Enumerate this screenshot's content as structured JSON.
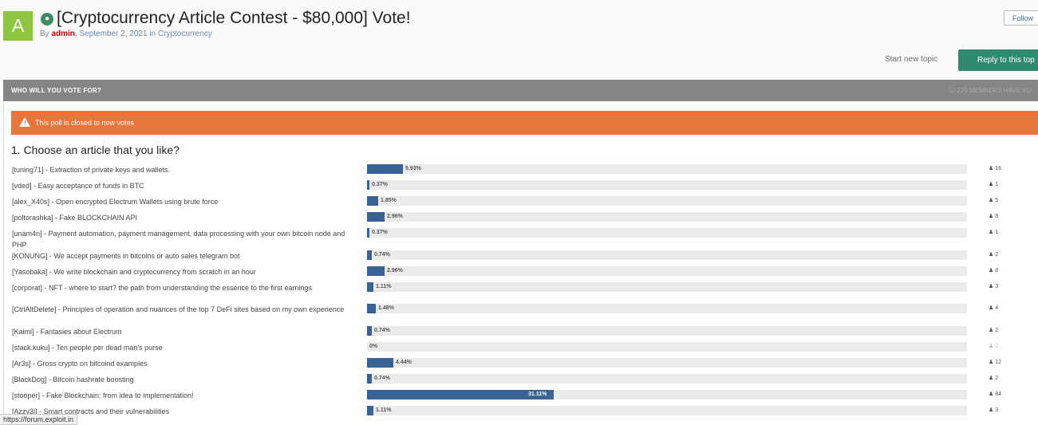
{
  "topic": {
    "avatar_letter": "A",
    "title": "[Cryptocurrency Article Contest - $80,000] Vote!",
    "by_label": "By",
    "author": "admin",
    "date": "September 2, 2021",
    "in_label": "in",
    "forum": "Cryptocurrency"
  },
  "actions": {
    "follow": "Follow",
    "start_new_topic": "Start new topic",
    "reply": "Reply to this top"
  },
  "poll": {
    "header": "WHO WILL YOU VOTE FOR?",
    "members_voted": "☑ 270 MEMBERS HAVE VO",
    "closed_notice": "This poll is closed to new votes",
    "question": "1. Choose an article that you like?",
    "choices": [
      {
        "label": "[tuning71] - Extraction of private keys and wallets.",
        "percent": 5.93,
        "percent_label": "5.93%",
        "votes": "16"
      },
      {
        "label": "[vded] - Easy acceptance of funds in BTC",
        "percent": 0.37,
        "percent_label": "0.37%",
        "votes": "1"
      },
      {
        "label": "[alex_X40s] - Open encrypted Electrum Wallets using brute force",
        "percent": 1.85,
        "percent_label": "1.85%",
        "votes": "5"
      },
      {
        "label": "[poltorashka] - Fake BLOCKCHAIN API",
        "percent": 2.96,
        "percent_label": "2.96%",
        "votes": "8"
      },
      {
        "label": "[unam4n] - Payment automation, payment management, data processing with your own bitcoin node and PHP",
        "percent": 0.37,
        "percent_label": "0.37%",
        "votes": "1"
      },
      {
        "label": "[KONUNG] - We accept payments in bitcoins or auto sales telegram bot",
        "percent": 0.74,
        "percent_label": "0.74%",
        "votes": "2"
      },
      {
        "label": "[Yasobaka] - We write blockchain and cryptocurrency from scratch in an hour",
        "percent": 2.96,
        "percent_label": "2.96%",
        "votes": "8"
      },
      {
        "label": "[corporat] - NFT - where to start? the path from understanding the essence to the first earnings",
        "percent": 1.11,
        "percent_label": "1.11%",
        "votes": "3"
      },
      {
        "label": "[CtrlAltDelete] - Principles of operation and nuances of the top 7 DeFi sites based on my own experience",
        "percent": 1.48,
        "percent_label": "1.48%",
        "votes": "4"
      },
      {
        "label": "[Kaimi] - Fantasies about Electrum",
        "percent": 0.74,
        "percent_label": "0.74%",
        "votes": "2"
      },
      {
        "label": "[stack.kuku] - Ten people per dead man's purse",
        "percent": 0,
        "percent_label": "0%",
        "votes": "0"
      },
      {
        "label": "[Ar3s] - Gross crypto on bitcoind examples",
        "percent": 4.44,
        "percent_label": "4.44%",
        "votes": "12"
      },
      {
        "label": "[BlackDog] - Bitcoin hashrate boosting",
        "percent": 0.74,
        "percent_label": "0.74%",
        "votes": "2"
      },
      {
        "label": "[stooper] - Fake Blockchain: from idea to implementation!",
        "percent": 31.11,
        "percent_label": "31.11%",
        "votes": "84"
      },
      {
        "label": "[Azzy3l] - Smart contracts and their vulnerabilities",
        "percent": 1.11,
        "percent_label": "1.11%",
        "votes": "3"
      }
    ]
  },
  "status_bar": {
    "url": "https://forum.exploit.in"
  },
  "colors": {
    "avatar": "#8cc63f",
    "author": "#cc0000",
    "reply_button": "#2e8b6f",
    "poll_header": "#858585",
    "closed_banner": "#e8753a",
    "bar_fill": "#3a6395",
    "bar_track": "#ebebeb"
  }
}
